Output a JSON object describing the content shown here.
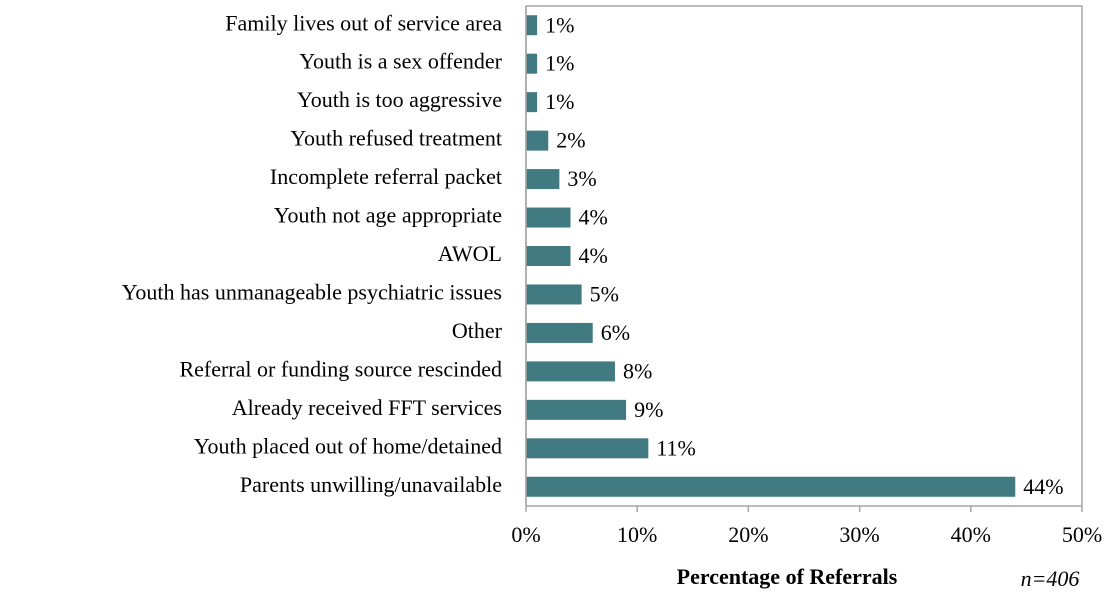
{
  "chart_data": {
    "type": "bar",
    "orientation": "horizontal",
    "categories": [
      "Family lives out of service area",
      "Youth is a sex offender",
      "Youth is too aggressive",
      "Youth refused treatment",
      "Incomplete referral packet",
      "Youth not age appropriate",
      "AWOL",
      "Youth has unmanageable psychiatric issues",
      "Other",
      "Referral or funding source rescinded",
      "Already received FFT services",
      "Youth placed out of home/detained",
      "Parents unwilling/unavailable"
    ],
    "values": [
      1,
      1,
      1,
      2,
      3,
      4,
      4,
      5,
      6,
      8,
      9,
      11,
      44
    ],
    "value_labels": [
      "1%",
      "1%",
      "1%",
      "2%",
      "3%",
      "4%",
      "4%",
      "5%",
      "6%",
      "8%",
      "9%",
      "11%",
      "44%"
    ],
    "color": "#417a80",
    "xlim": [
      0,
      50
    ],
    "xticks": [
      {
        "value": 0,
        "label": "0%"
      },
      {
        "value": 10,
        "label": "10%"
      },
      {
        "value": 20,
        "label": "20%"
      },
      {
        "value": 30,
        "label": "30%"
      },
      {
        "value": 40,
        "label": "40%"
      },
      {
        "value": 50,
        "label": "50%"
      }
    ],
    "xlabel": "Percentage of Referrals",
    "annotation": "n=406"
  }
}
